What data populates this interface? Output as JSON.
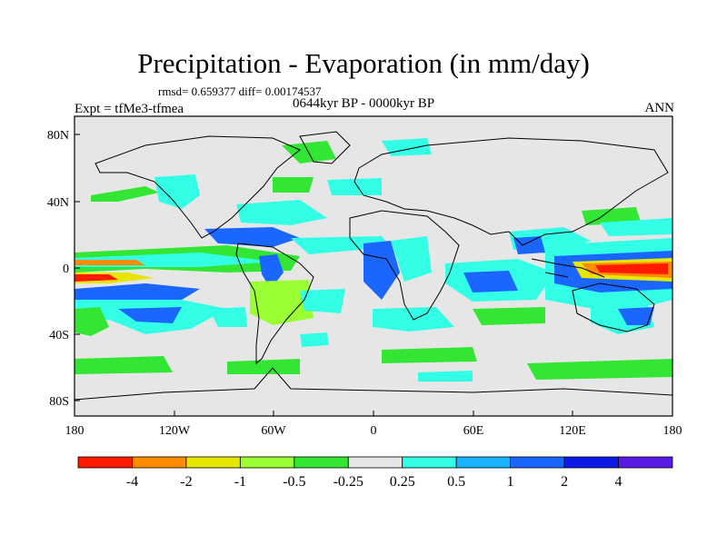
{
  "title": "Precipitation - Evaporation (in mm/day)",
  "stats": "rmsd= 0.659377 diff= 0.00174537",
  "period": "0644kyr BP - 0000kyr BP",
  "experiment": "Expt = tfMe3-tfmea",
  "season": "ANN",
  "axes": {
    "lon_ticks": [
      "180",
      "120W",
      "60W",
      "0",
      "60E",
      "120E",
      "180"
    ],
    "lat_ticks": [
      "80N",
      "40N",
      "0",
      "40S",
      "80S"
    ]
  },
  "colorbar": {
    "colors": [
      "#ff1a00",
      "#ff8c00",
      "#e6e600",
      "#9aff33",
      "#33e633",
      "#e6e6e6",
      "#33ffe6",
      "#1ab3ff",
      "#1a66ff",
      "#0d1ae6",
      "#5a1ae6"
    ],
    "labels": [
      "-4",
      "-2",
      "-1",
      "-0.5",
      "-0.25",
      "0.25",
      "0.5",
      "1",
      "2",
      "4"
    ]
  }
}
